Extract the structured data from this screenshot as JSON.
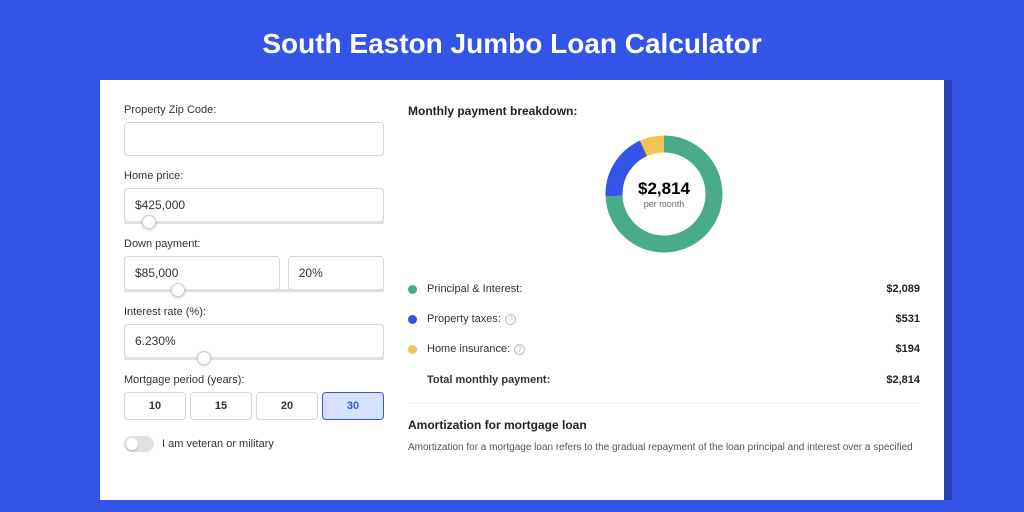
{
  "page": {
    "title": "South Easton Jumbo Loan Calculator",
    "background_color": "#3255e8",
    "card_shadow_color": "#2a42b8"
  },
  "form": {
    "zip": {
      "label": "Property Zip Code:",
      "value": ""
    },
    "home_price": {
      "label": "Home price:",
      "value": "$425,000",
      "slider_pos_pct": 7
    },
    "down_payment": {
      "label": "Down payment:",
      "amount": "$85,000",
      "percent": "20%",
      "slider_pos_pct": 18
    },
    "interest_rate": {
      "label": "Interest rate (%):",
      "value": "6.230%",
      "slider_pos_pct": 28
    },
    "mortgage_period": {
      "label": "Mortgage period (years):",
      "options": [
        "10",
        "15",
        "20",
        "30"
      ],
      "selected": "30"
    },
    "veteran": {
      "label": "I am veteran or military",
      "checked": false
    }
  },
  "breakdown": {
    "title": "Monthly payment breakdown:",
    "donut": {
      "amount": "$2,814",
      "sub": "per month",
      "stroke_width": 17,
      "slices": [
        {
          "key": "principal_interest",
          "color": "#4aab8a",
          "value": 2089
        },
        {
          "key": "property_taxes",
          "color": "#3255e8",
          "value": 531
        },
        {
          "key": "home_insurance",
          "color": "#f1c453",
          "value": 194
        }
      ]
    },
    "legend": [
      {
        "label": "Principal & Interest:",
        "color": "#4aab8a",
        "value": "$2,089",
        "info": false
      },
      {
        "label": "Property taxes:",
        "color": "#3255e8",
        "value": "$531",
        "info": true
      },
      {
        "label": "Home insurance:",
        "color": "#f1c453",
        "value": "$194",
        "info": true
      }
    ],
    "total": {
      "label": "Total monthly payment:",
      "value": "$2,814"
    }
  },
  "amortization": {
    "title": "Amortization for mortgage loan",
    "text": "Amortization for a mortgage loan refers to the gradual repayment of the loan principal and interest over a specified"
  }
}
